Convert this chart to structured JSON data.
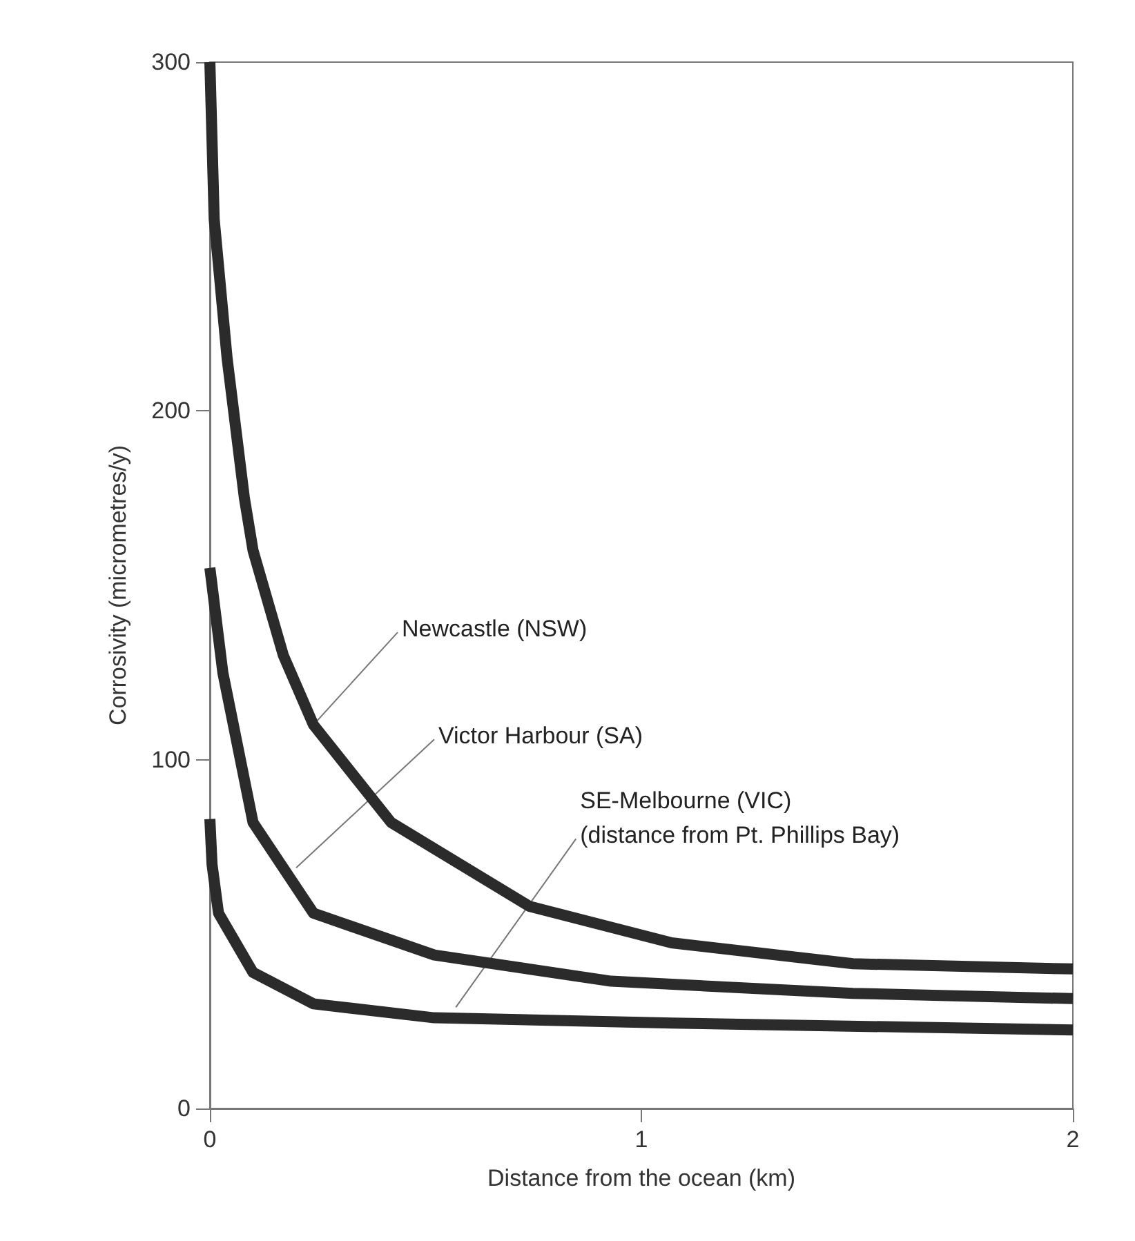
{
  "chart_data": {
    "type": "line",
    "xlabel": "Distance from the ocean (km)",
    "ylabel": "Corrosivity (micrometres/y)",
    "xlim": [
      0,
      2
    ],
    "xticks": [
      0,
      1,
      2
    ],
    "ylim": [
      0,
      300
    ],
    "yticks": [
      0,
      100,
      200,
      300
    ],
    "grid": false,
    "marker": "none",
    "line_style": "solid",
    "series": [
      {
        "color": "#2b2b2b",
        "x": [
          0,
          0.01,
          0.04,
          0.08,
          0.1,
          0.17,
          0.24,
          0.42,
          0.74,
          1.07,
          1.49,
          2
        ],
        "values": [
          300,
          255,
          215,
          175,
          160,
          130,
          110,
          82,
          58,
          47.5,
          41.5,
          40
        ]
      },
      {
        "color": "#2b2b2b",
        "x": [
          0,
          0.01,
          0.03,
          0.1,
          0.24,
          0.52,
          0.93,
          1.49,
          2
        ],
        "values": [
          155,
          145,
          125,
          82,
          56,
          44,
          36.5,
          33,
          31.5
        ]
      },
      {
        "color": "#2b2b2b",
        "x": [
          0,
          0.005,
          0.02,
          0.1,
          0.24,
          0.52,
          1.07,
          2
        ],
        "values": [
          83,
          70,
          56,
          39,
          30,
          26,
          24.5,
          22.5
        ]
      }
    ],
    "annotations": [
      {
        "text": "Newcastle (NSW)",
        "x": 0.24,
        "y": 110
      },
      {
        "text": "Victor Harbour (SA)",
        "x": 0.2,
        "y": 69
      },
      {
        "text": "SE-Melbourne (VIC)\n(distance from Pt. Phillips Bay)",
        "x": 0.57,
        "y": 29
      }
    ]
  }
}
